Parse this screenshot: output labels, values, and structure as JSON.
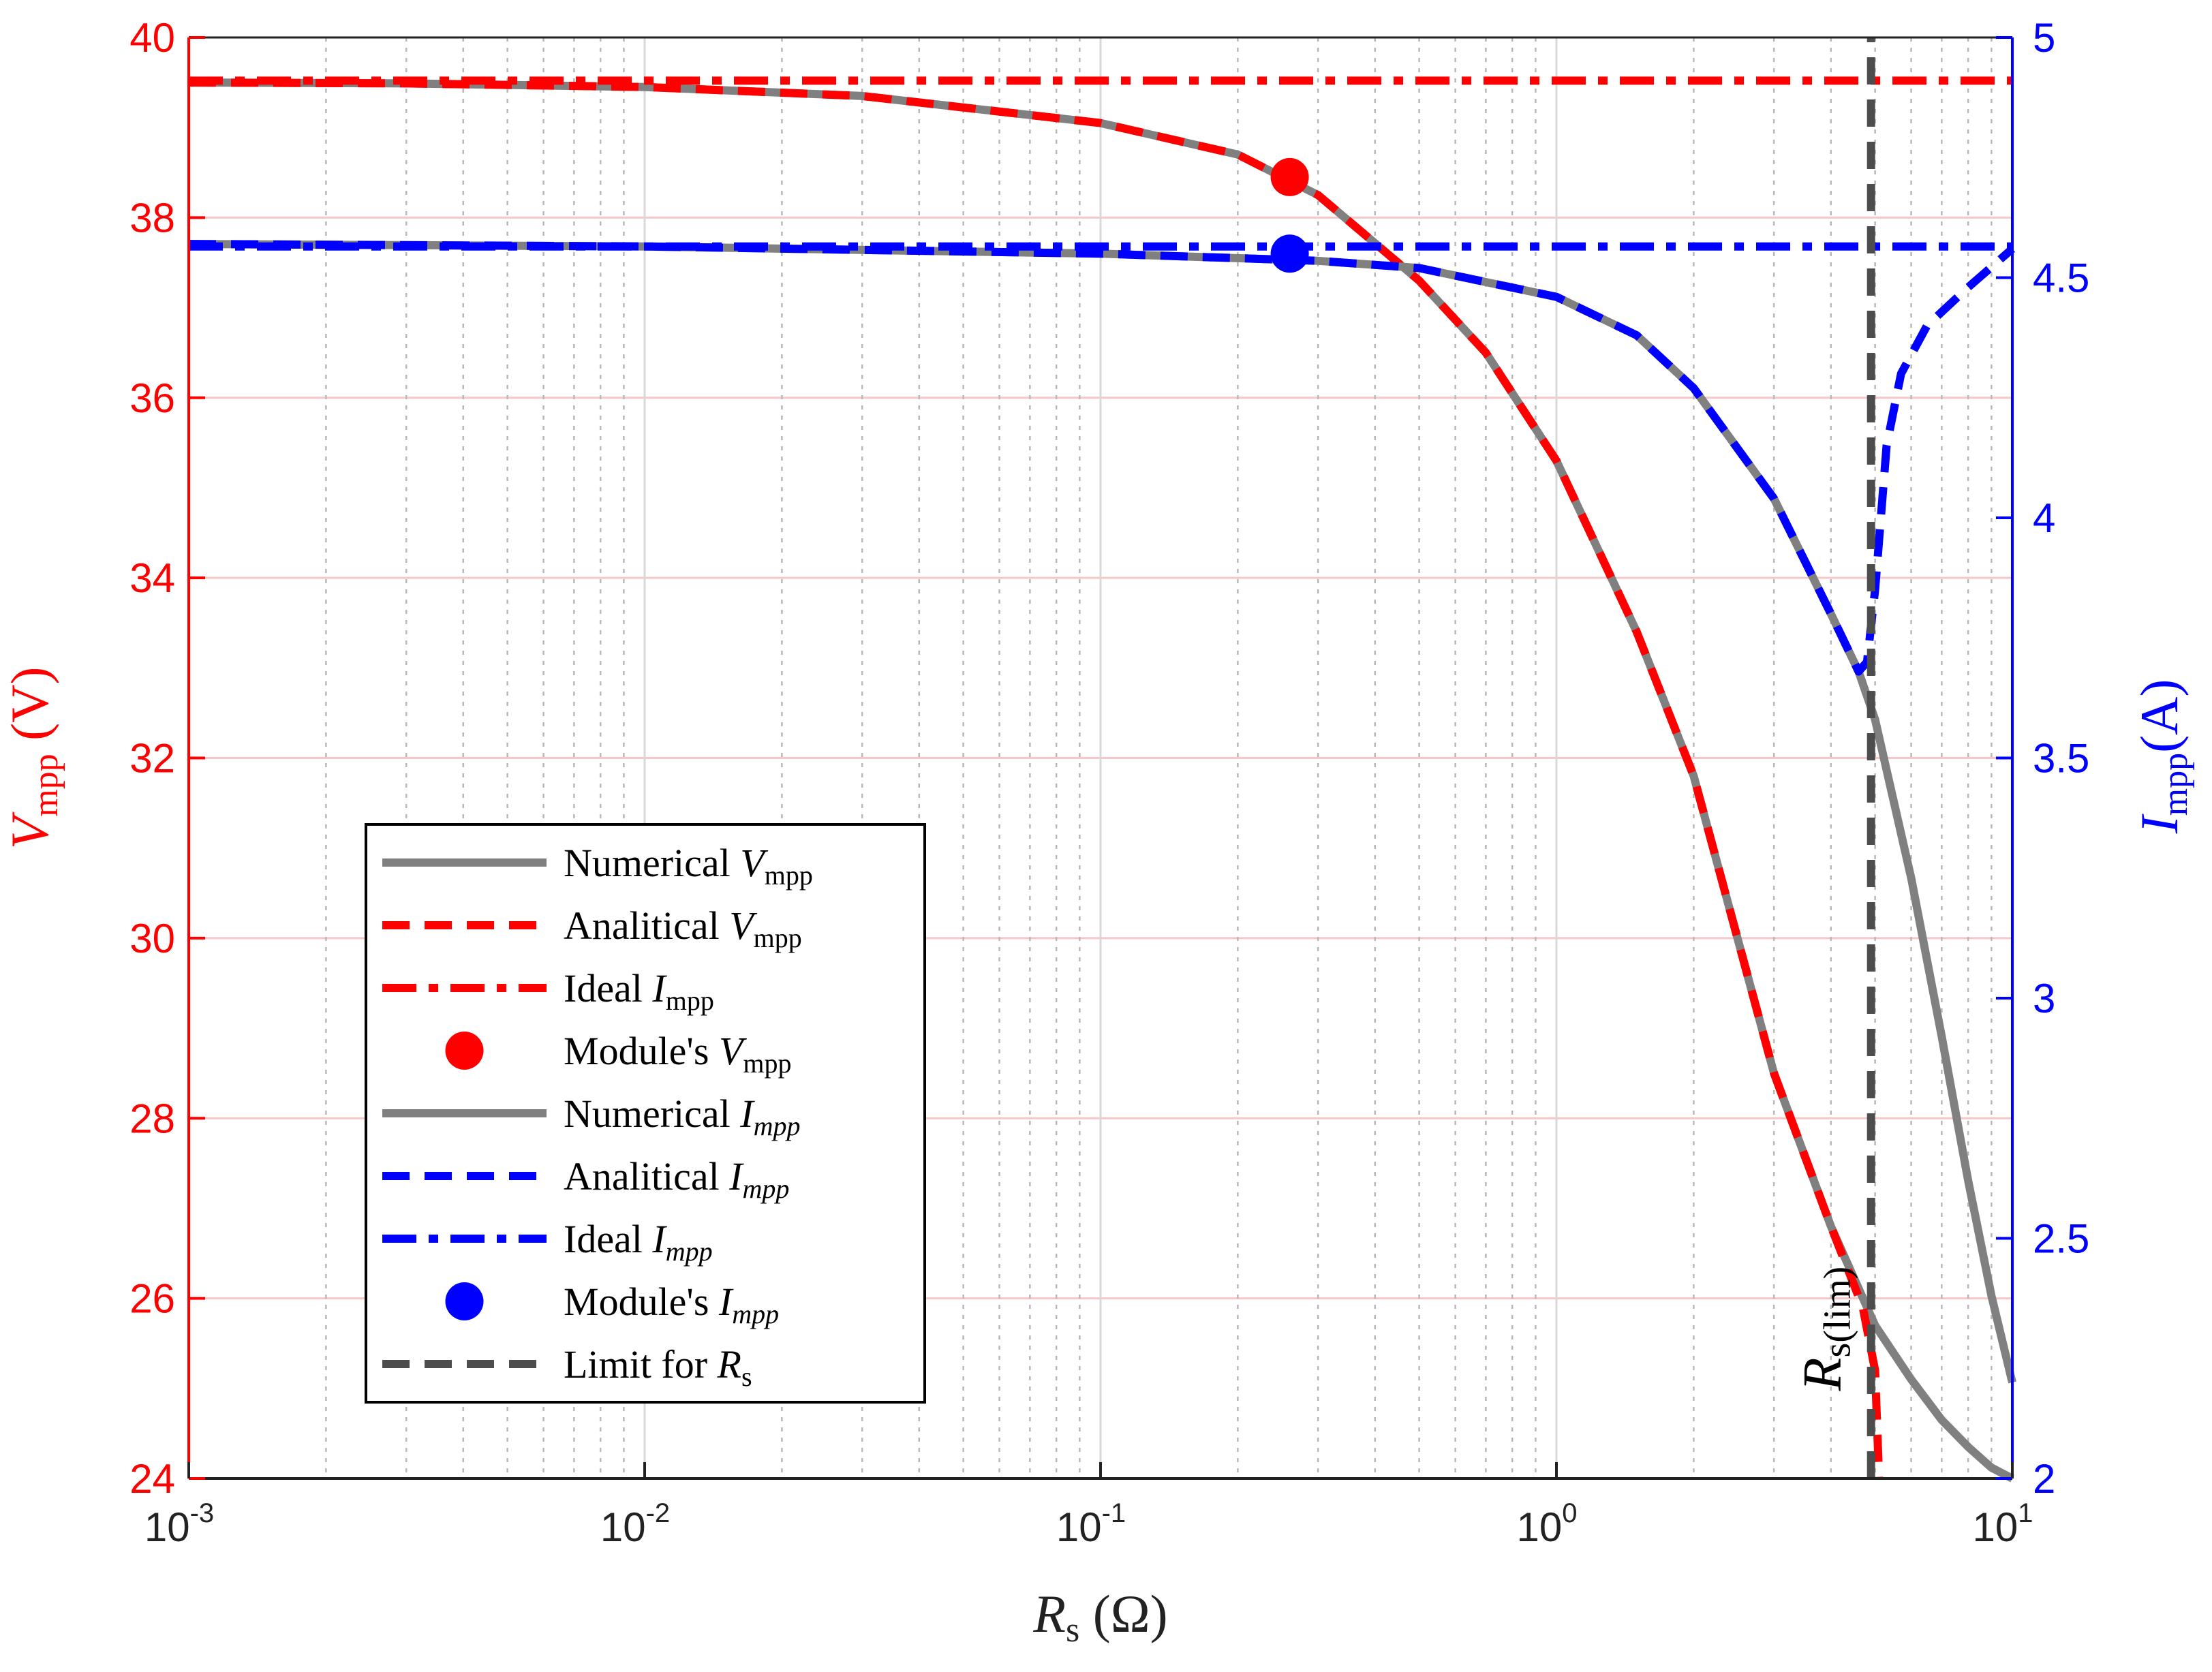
{
  "colors": {
    "red": "#ff0000",
    "blue": "#0000ff",
    "gray": "#808080",
    "darkgray": "#4d4d4d",
    "grid_left": "#f7c7c7",
    "grid_x": "#d8d8d8"
  },
  "chart_data": {
    "type": "line",
    "xscale": "log",
    "xlim": [
      0.001,
      10
    ],
    "xlabel": {
      "main": "R",
      "sub": "s",
      "rest": " (Ω)"
    },
    "x_ticks": [
      {
        "base": "10",
        "exp": "-3"
      },
      {
        "base": "10",
        "exp": "-2"
      },
      {
        "base": "10",
        "exp": "-1"
      },
      {
        "base": "10",
        "exp": "0"
      },
      {
        "base": "10",
        "exp": "1"
      }
    ],
    "y_left": {
      "label": {
        "main": "V",
        "sub": "mpp",
        "rest": " (V)"
      },
      "lim": [
        24,
        40
      ],
      "ticks": [
        "24",
        "26",
        "28",
        "30",
        "32",
        "34",
        "36",
        "38",
        "40"
      ]
    },
    "y_right": {
      "label": {
        "main": "I",
        "sub": "mpp",
        "rest": "(A)"
      },
      "lim": [
        2,
        5
      ],
      "ticks": [
        "2",
        "2.5",
        "3",
        "3.5",
        "4",
        "4.5",
        "5"
      ]
    },
    "series": [
      {
        "name": "Numerical V_mpp",
        "axis": "left",
        "style": "solid",
        "color": "#808080",
        "x": [
          0.001,
          0.003,
          0.01,
          0.03,
          0.1,
          0.2,
          0.3,
          0.5,
          0.7,
          1,
          1.5,
          2,
          3,
          4,
          5,
          6,
          7,
          8,
          9,
          10
        ],
        "y": [
          39.5,
          39.49,
          39.45,
          39.35,
          39.05,
          38.7,
          38.25,
          37.3,
          36.5,
          35.3,
          33.4,
          31.8,
          28.5,
          26.8,
          25.7,
          25.1,
          24.65,
          24.35,
          24.12,
          24.0
        ]
      },
      {
        "name": "Analitical V_mpp",
        "axis": "left",
        "style": "dash",
        "color": "#ff0000",
        "x": [
          0.001,
          0.003,
          0.01,
          0.03,
          0.1,
          0.2,
          0.3,
          0.5,
          0.7,
          1,
          1.5,
          2,
          3,
          4,
          4.7,
          5.0,
          5.1
        ],
        "y": [
          39.5,
          39.49,
          39.45,
          39.35,
          39.05,
          38.7,
          38.25,
          37.3,
          36.5,
          35.3,
          33.4,
          31.8,
          28.5,
          26.8,
          25.9,
          25.2,
          24.0
        ]
      },
      {
        "name": "Ideal I_mpp",
        "axis": "left",
        "style": "dashdot",
        "color": "#ff0000",
        "x": [
          0.001,
          10
        ],
        "y": [
          39.52,
          39.52
        ]
      },
      {
        "name": "Numerical I_mpp",
        "axis": "right",
        "style": "solid",
        "color": "#808080",
        "x": [
          0.001,
          0.01,
          0.1,
          0.3,
          0.5,
          1,
          1.5,
          2,
          3,
          4,
          4.6,
          5.0,
          6,
          7,
          8,
          9,
          10
        ],
        "y": [
          4.57,
          4.565,
          4.55,
          4.535,
          4.52,
          4.46,
          4.38,
          4.27,
          4.04,
          3.8,
          3.68,
          3.58,
          3.25,
          2.92,
          2.62,
          2.38,
          2.2
        ]
      },
      {
        "name": "Analitical I_mpp",
        "axis": "right",
        "style": "dash",
        "color": "#0000ff",
        "x": [
          0.001,
          0.01,
          0.1,
          0.3,
          0.5,
          1,
          1.5,
          2,
          3,
          4,
          4.6,
          4.8,
          5.0,
          5.3,
          5.7,
          6.5,
          8,
          10
        ],
        "y": [
          4.57,
          4.565,
          4.55,
          4.535,
          4.52,
          4.46,
          4.38,
          4.27,
          4.04,
          3.8,
          3.68,
          3.7,
          3.85,
          4.15,
          4.3,
          4.4,
          4.48,
          4.56
        ]
      },
      {
        "name": "Ideal I_mpp (blue)",
        "axis": "right",
        "style": "dashdot",
        "color": "#0000ff",
        "x": [
          0.001,
          10
        ],
        "y": [
          4.565,
          4.565
        ]
      },
      {
        "name": "Limit for R_s",
        "axis": "left",
        "style": "dash",
        "color": "#4d4d4d",
        "x": [
          4.9,
          4.9
        ],
        "y": [
          24,
          40
        ]
      }
    ],
    "points": [
      {
        "name": "Module's V_mpp",
        "axis": "left",
        "x": 0.26,
        "y": 38.45,
        "color": "#ff0000"
      },
      {
        "name": "Module's I_mpp",
        "axis": "right",
        "x": 0.26,
        "y": 4.55,
        "color": "#0000ff"
      }
    ],
    "annotation": {
      "main": "R",
      "sub": "s(lim)",
      "x": 4.9
    },
    "legend": {
      "placement": "lower-left",
      "entries": [
        {
          "text": "Numerical ",
          "sym": "V",
          "sub": "mpp",
          "sub_italic": false,
          "style": "solid",
          "color": "#808080"
        },
        {
          "text": "Analitical ",
          "sym": "V",
          "sub": "mpp",
          "sub_italic": false,
          "style": "dash",
          "color": "#ff0000"
        },
        {
          "text": "Ideal ",
          "sym": "I",
          "sub": "mpp",
          "sub_italic": false,
          "style": "dashdot",
          "color": "#ff0000"
        },
        {
          "text": "Module's ",
          "sym": "V",
          "sub": "mpp",
          "sub_italic": false,
          "style": "marker",
          "color": "#ff0000"
        },
        {
          "text": "Numerical ",
          "sym": "I",
          "sub": "mpp",
          "sub_italic": true,
          "style": "solid",
          "color": "#808080"
        },
        {
          "text": "Analitical ",
          "sym": "I",
          "sub": "mpp",
          "sub_italic": true,
          "style": "dash",
          "color": "#0000ff"
        },
        {
          "text": "Ideal ",
          "sym": "I",
          "sub": "mpp",
          "sub_italic": true,
          "style": "dashdot",
          "color": "#0000ff"
        },
        {
          "text": "Module's ",
          "sym": "I",
          "sub": "mpp",
          "sub_italic": true,
          "style": "marker",
          "color": "#0000ff"
        },
        {
          "text": "Limit for ",
          "sym": "R",
          "sub": "s",
          "sub_italic": false,
          "style": "dash",
          "color": "#4d4d4d"
        }
      ]
    }
  }
}
